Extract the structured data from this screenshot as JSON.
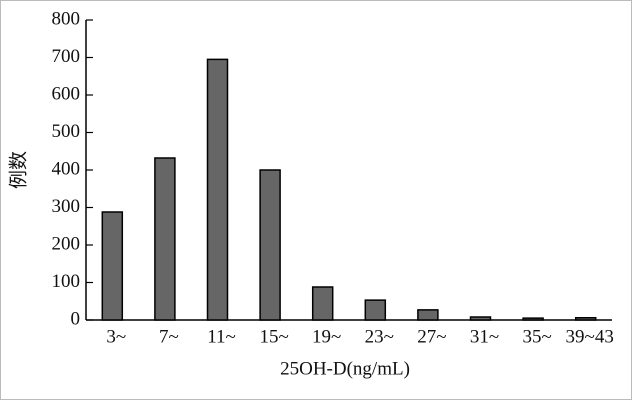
{
  "chart_data": {
    "type": "bar",
    "x_label": "25OH-D(ng/mL)",
    "y_label": "例数",
    "categories": [
      "3~",
      "7~",
      "11~",
      "15~",
      "19~",
      "23~",
      "27~",
      "31~",
      "35~",
      "39~43"
    ],
    "values": [
      288,
      432,
      695,
      400,
      88,
      53,
      27,
      8,
      5,
      6
    ],
    "color": "#666666",
    "ylim": [
      0,
      800
    ],
    "yticks": [
      0,
      100,
      200,
      300,
      400,
      500,
      600,
      700,
      800
    ],
    "grid": false
  }
}
